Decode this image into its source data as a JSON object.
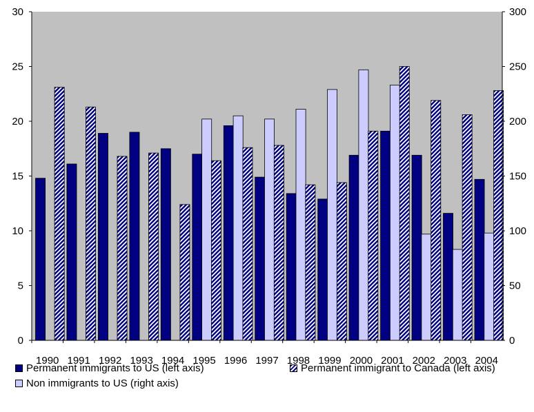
{
  "chart_data": {
    "type": "bar",
    "categories": [
      "1990",
      "1991",
      "1992",
      "1993",
      "1994",
      "1995",
      "1996",
      "1997",
      "1998",
      "1999",
      "2000",
      "2001",
      "2002",
      "2003",
      "2004"
    ],
    "series": [
      {
        "name": "Permanent immigrants to US (left axis)",
        "axis": "left",
        "color": "#000080",
        "pattern": "solid",
        "values": [
          14.8,
          16.1,
          18.9,
          19.0,
          17.5,
          17.0,
          19.6,
          14.9,
          13.4,
          12.9,
          16.9,
          19.1,
          16.9,
          11.6,
          14.7
        ]
      },
      {
        "name": "Non immigrants to US (right axis)",
        "axis": "right",
        "color": "#ccccff",
        "pattern": "solid",
        "values": [
          null,
          null,
          null,
          null,
          null,
          202,
          205,
          202,
          211,
          229,
          247,
          233,
          97,
          83,
          98
        ]
      },
      {
        "name": "Permanent immigrant to Canada (left axis)",
        "axis": "left",
        "color": "#000080",
        "pattern": "hatched",
        "values": [
          23.1,
          21.3,
          16.8,
          17.1,
          12.4,
          16.4,
          17.6,
          17.8,
          14.2,
          14.4,
          19.1,
          25.0,
          21.9,
          20.6,
          22.8
        ]
      }
    ],
    "y_left": {
      "ylim": [
        0,
        30
      ],
      "ticks": [
        "0",
        "5",
        "10",
        "15",
        "20",
        "25",
        "30"
      ]
    },
    "y_right": {
      "ylim": [
        0,
        300
      ],
      "ticks": [
        "0",
        "50",
        "100",
        "150",
        "200",
        "250",
        "300"
      ]
    },
    "plot_background": "#c0c0c0",
    "grid": false,
    "legend_position": "bottom"
  },
  "legend": {
    "us": "Permanent immigrants to US (left axis)",
    "canada": "Permanent immigrant to Canada (left axis)",
    "non": "Non immigrants to US (right axis)"
  }
}
